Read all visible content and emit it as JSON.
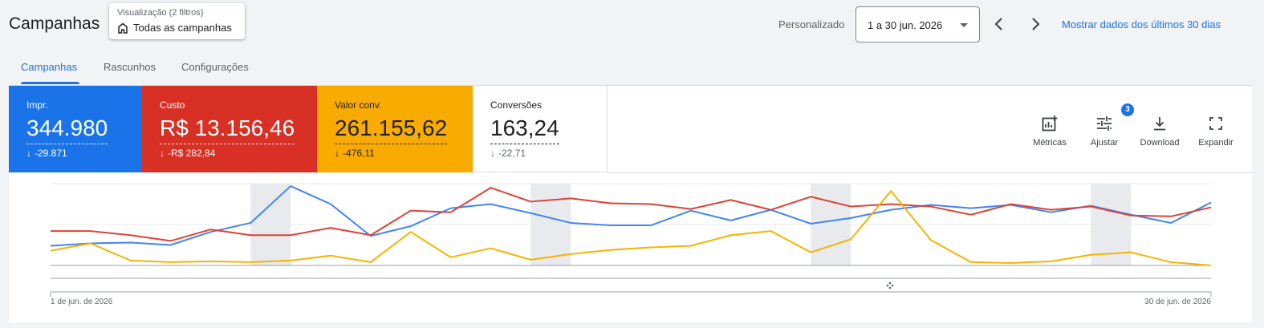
{
  "header": {
    "title": "Campanhas",
    "filter_caption": "Visualização (2 filtros)",
    "filter_value": "Todas as campanhas",
    "custom_label": "Personalizado",
    "date_range": "1 a 30 jun. 2026",
    "show_last_30": "Mostrar dados dos últimos 30 dias"
  },
  "tabs": [
    {
      "label": "Campanhas",
      "active": true
    },
    {
      "label": "Rascunhos",
      "active": false
    },
    {
      "label": "Configurações",
      "active": false
    }
  ],
  "metrics": [
    {
      "label": "Impr.",
      "value": "344.980",
      "delta": "-29.871",
      "color": "#1a73e8"
    },
    {
      "label": "Custo",
      "value": "R$ 13.156,46",
      "delta": "-R$ 282,84",
      "color": "#d93025"
    },
    {
      "label": "Valor conv.",
      "value": "261.155,62",
      "delta": "-476,11",
      "color": "#f9ab00"
    },
    {
      "label": "Conversões",
      "value": "163,24",
      "delta": "-22,71",
      "color": "#ffffff"
    }
  ],
  "tools": [
    {
      "label": "Métricas",
      "icon": "add-chart-icon"
    },
    {
      "label": "Ajustar",
      "icon": "tune-icon",
      "badge": "3"
    },
    {
      "label": "Download",
      "icon": "download-icon"
    },
    {
      "label": "Expandir",
      "icon": "fullscreen-icon"
    }
  ],
  "chart_data": {
    "type": "line",
    "x_start_label": "1 de jun. de 2026",
    "x_end_label": "30 de jun. de 2026",
    "x": [
      1,
      2,
      3,
      4,
      5,
      6,
      7,
      8,
      9,
      10,
      11,
      12,
      13,
      14,
      15,
      16,
      17,
      18,
      19,
      20,
      21,
      22,
      23,
      24,
      25,
      26,
      27,
      28,
      29,
      30
    ],
    "weekend_bands": [
      [
        6,
        7
      ],
      [
        13,
        14
      ],
      [
        20,
        21
      ],
      [
        27,
        28
      ]
    ],
    "series": [
      {
        "color": "#4285f4",
        "values": [
          0.24,
          0.27,
          0.28,
          0.25,
          0.41,
          0.52,
          0.97,
          0.75,
          0.36,
          0.48,
          0.7,
          0.75,
          0.64,
          0.52,
          0.49,
          0.49,
          0.67,
          0.55,
          0.68,
          0.51,
          0.58,
          0.68,
          0.74,
          0.7,
          0.74,
          0.65,
          0.73,
          0.62,
          0.52,
          0.77
        ]
      },
      {
        "color": "#db4437",
        "values": [
          0.42,
          0.42,
          0.37,
          0.3,
          0.44,
          0.37,
          0.37,
          0.46,
          0.37,
          0.67,
          0.65,
          0.95,
          0.78,
          0.82,
          0.76,
          0.75,
          0.69,
          0.8,
          0.68,
          0.84,
          0.72,
          0.75,
          0.72,
          0.62,
          0.75,
          0.68,
          0.72,
          0.61,
          0.6,
          0.71
        ]
      },
      {
        "color": "#f4b400",
        "values": [
          0.18,
          0.27,
          0.06,
          0.04,
          0.05,
          0.04,
          0.06,
          0.12,
          0.04,
          0.41,
          0.1,
          0.21,
          0.07,
          0.14,
          0.19,
          0.22,
          0.24,
          0.37,
          0.42,
          0.16,
          0.32,
          0.91,
          0.31,
          0.04,
          0.03,
          0.05,
          0.13,
          0.16,
          0.04,
          0.0
        ]
      }
    ]
  }
}
